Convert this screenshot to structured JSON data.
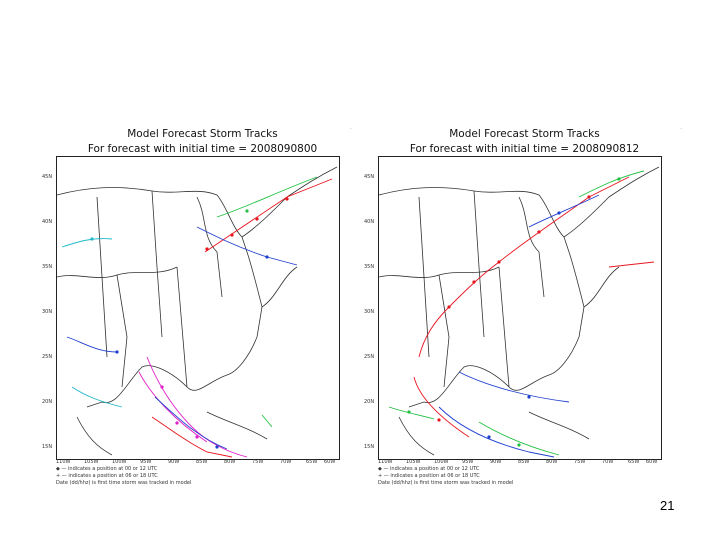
{
  "panels": [
    {
      "title_line1": "Model Forecast Storm Tracks",
      "title_line2": "For forecast with initial time = 2008090800",
      "stray_mark": "·",
      "lat_labels": [
        "45N",
        "40N",
        "35N",
        "30N",
        "25N",
        "20N",
        "15N"
      ],
      "lon_labels": [
        "110W",
        "105W",
        "100W",
        "95W",
        "90W",
        "85W",
        "80W",
        "75W",
        "70W",
        "65W",
        "60W"
      ],
      "legend": [
        "◆ — indicates a position at 00 or 12 UTC",
        "+ — indicates a position at 06 or 18 UTC",
        "Date (dd/hhz) is first time storm was tracked in model"
      ]
    },
    {
      "title_line1": "Model Forecast Storm Tracks",
      "title_line2": "For forecast with initial time = 2008090812",
      "stray_mark": "·",
      "lat_labels": [
        "45N",
        "40N",
        "35N",
        "30N",
        "25N",
        "20N",
        "15N"
      ],
      "lon_labels": [
        "110W",
        "105W",
        "100W",
        "95W",
        "90W",
        "85W",
        "80W",
        "75W",
        "70W",
        "65W",
        "60W"
      ],
      "legend": [
        "◆ — indicates a position at 00 or 12 UTC",
        "+ — indicates a position at 06 or 18 UTC",
        "Date (dd/hhz) is first time storm was tracked in model"
      ]
    }
  ],
  "colors": {
    "track_red": "#e8141e",
    "track_magenta": "#e020c8",
    "track_blue": "#2040d0",
    "track_green": "#20c040",
    "track_cyan": "#20b8c8",
    "map_line": "#333333"
  },
  "page_number": "21"
}
